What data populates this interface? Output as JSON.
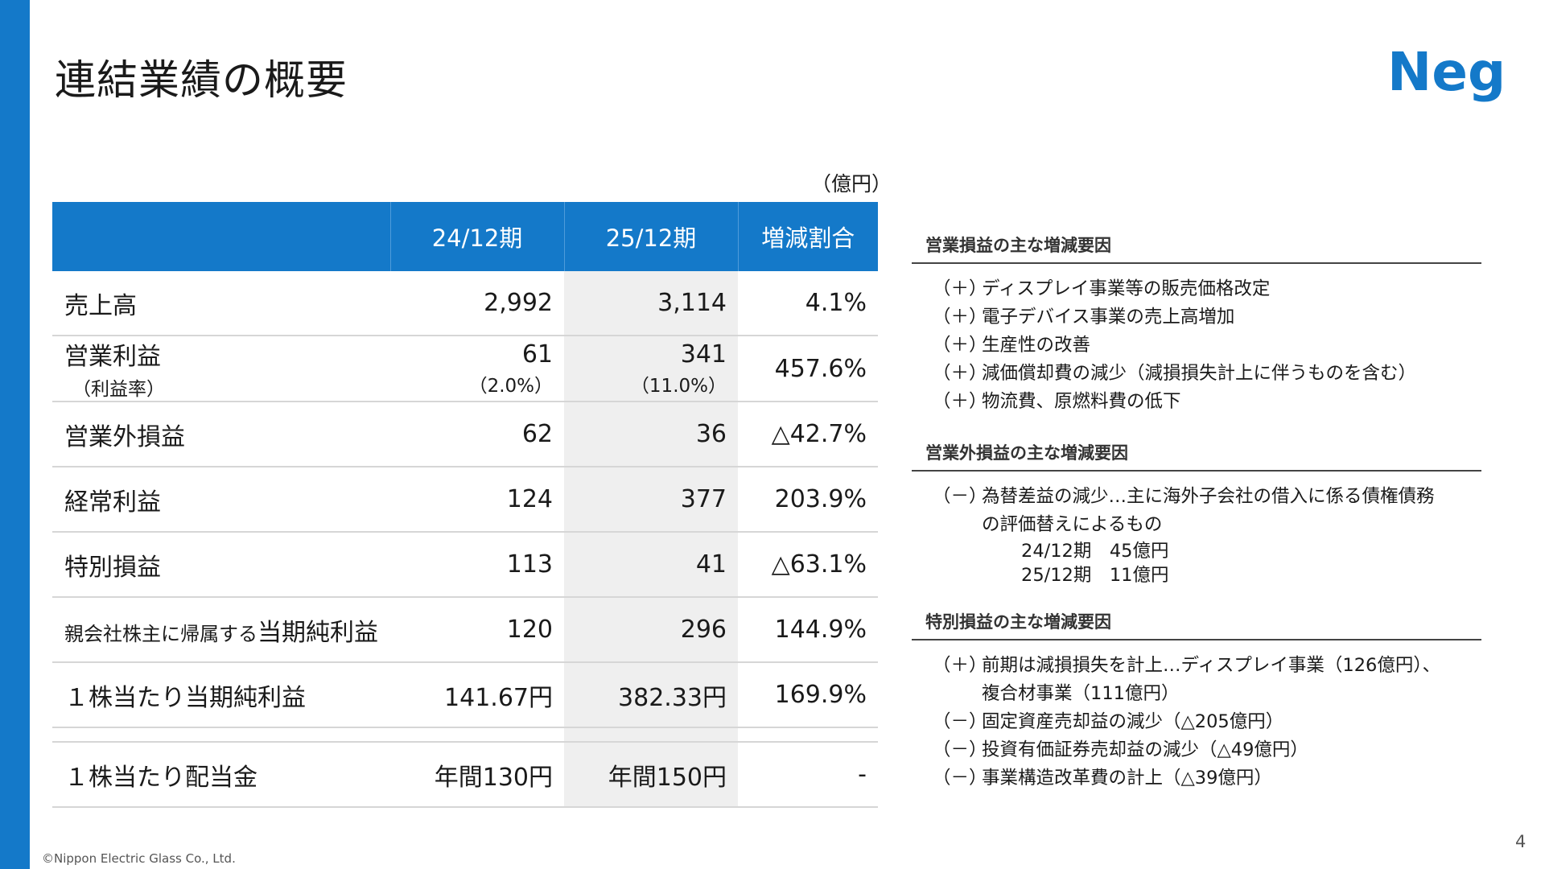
{
  "title": "連結業績の概要",
  "logo_text": "Neg",
  "unit": "（億円）",
  "table": {
    "headers": [
      "",
      "24/12期",
      "25/12期",
      "増減割合"
    ],
    "rows": [
      {
        "label": "売上高",
        "v1": "2,992",
        "v2": "3,114",
        "change": "4.1%"
      },
      {
        "label": "営業利益",
        "sublabel": "（利益率）",
        "v1": "61",
        "v1_sub": "（2.0%）",
        "v2": "341",
        "v2_sub": "（11.0%）",
        "change": "457.6%"
      },
      {
        "label": "営業外損益",
        "v1": "62",
        "v2": "36",
        "change": "△42.7%"
      },
      {
        "label": "経常利益",
        "v1": "124",
        "v2": "377",
        "change": "203.9%"
      },
      {
        "label": "特別損益",
        "v1": "113",
        "v2": "41",
        "change": "△63.1%"
      },
      {
        "label_small": "親会社株主に帰属する",
        "label": "当期純利益",
        "v1": "120",
        "v2": "296",
        "change": "144.9%"
      },
      {
        "label": "１株当たり当期純利益",
        "v1": "141.67円",
        "v2": "382.33円",
        "change": "169.9%"
      },
      {
        "label": "１株当たり配当金",
        "v1": "年間130円",
        "v2": "年間150円",
        "change": "-"
      }
    ]
  },
  "operating_factors": {
    "heading": "営業損益の主な増減要因",
    "items": [
      {
        "mark": "（＋）",
        "text": "ディスプレイ事業等の販売価格改定"
      },
      {
        "mark": "（＋）",
        "text": "電子デバイス事業の売上高増加"
      },
      {
        "mark": "（＋）",
        "text": "生産性の改善"
      },
      {
        "mark": "（＋）",
        "text": "減価償却費の減少（減損損失計上に伴うものを含む）"
      },
      {
        "mark": "（＋）",
        "text": "物流費、原燃料費の低下"
      }
    ]
  },
  "non_operating_factors": {
    "heading": "営業外損益の主な増減要因",
    "mark": "（－）",
    "text": "為替差益の減少…主に海外子会社の借入に係る債権債務",
    "text_cont": "の評価替えによるもの",
    "detail": [
      "24/12期　45億円",
      "25/12期　11億円"
    ]
  },
  "extraordinary_factors": {
    "heading": "特別損益の主な増減要因",
    "items": [
      {
        "mark": "（＋）",
        "text": "前期は減損損失を計上…ディスプレイ事業（126億円）、",
        "cont": "複合材事業（111億円）"
      },
      {
        "mark": "（－）",
        "text": "固定資産売却益の減少（△205億円）"
      },
      {
        "mark": "（－）",
        "text": "投資有価証券売却益の減少（△49億円）"
      },
      {
        "mark": "（－）",
        "text": "事業構造改革費の計上（△39億円）"
      }
    ]
  },
  "footer": {
    "copyright": "©Nippon Electric Glass Co., Ltd.",
    "page_number": "4"
  },
  "colors": {
    "brand_blue": "#1479c9",
    "shade": "#efefef"
  }
}
